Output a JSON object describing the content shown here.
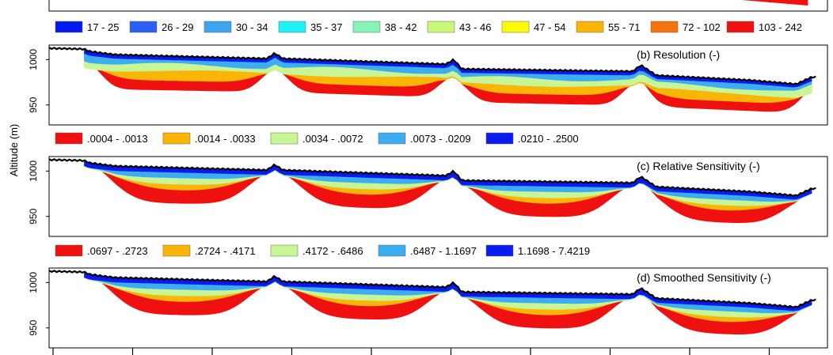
{
  "figure": {
    "ylabel": "Altitude (m)"
  },
  "chart_data": [
    {
      "type": "heatmap",
      "title": "",
      "legend": [
        {
          "label": "17 - 25",
          "color": "#0019f0"
        },
        {
          "label": "26 - 29",
          "color": "#2d5ff5"
        },
        {
          "label": "30 - 34",
          "color": "#3ca5ee"
        },
        {
          "label": "35 - 37",
          "color": "#1ef2f7"
        },
        {
          "label": "38 - 42",
          "color": "#86f4b8"
        },
        {
          "label": "43 - 46",
          "color": "#c8f878"
        },
        {
          "label": "47 - 54",
          "color": "#fbfa09"
        },
        {
          "label": "55 - 71",
          "color": "#fab507"
        },
        {
          "label": "72 - 102",
          "color": "#f4730e"
        },
        {
          "label": "103 - 242",
          "color": "#ef1010"
        }
      ]
    },
    {
      "type": "heatmap",
      "title": "(b) Resolution (-)",
      "ylabel": "Altitude (m)",
      "yticks": [
        950,
        1000
      ],
      "ylim": [
        928,
        1016
      ],
      "legend": [
        {
          "label": ".0004 - .0013",
          "color": "#ef1010"
        },
        {
          "label": ".0014 - .0033",
          "color": "#fab507"
        },
        {
          "label": ".0034 - .0072",
          "color": "#c8f595"
        },
        {
          "label": ".0073 - .0209",
          "color": "#3caeef"
        },
        {
          "label": ".0210 - .2500",
          "color": "#0a1bf0"
        }
      ]
    },
    {
      "type": "heatmap",
      "title": "(c) Relative Sensitivity (-)",
      "ylabel": "Altitude (m)",
      "yticks": [
        950,
        1000
      ],
      "ylim": [
        928,
        1016
      ],
      "legend": [
        {
          "label": ".0697 - .2723",
          "color": "#ef1010"
        },
        {
          "label": ".2724 - .4171",
          "color": "#fab507"
        },
        {
          "label": ".4172 - .6486",
          "color": "#c8f595"
        },
        {
          "label": ".6487 - 1.1697",
          "color": "#3caeef"
        },
        {
          "label": "1.1698 - 7.4219",
          "color": "#0a1bf0"
        }
      ]
    },
    {
      "type": "heatmap",
      "title": "(d) Smoothed Sensitivity (-)",
      "ylabel": "Altitude (m)",
      "yticks": [
        950,
        1000
      ],
      "ylim": [
        928,
        1016
      ]
    }
  ],
  "colors": {
    "blue": "#0a1bf0",
    "lightblue": "#3caeef",
    "cyan": "#1ef2f7",
    "mint": "#86f4b8",
    "lime": "#c8f595",
    "yellow": "#fbfa09",
    "orange": "#fab507",
    "darkorange": "#f4730e",
    "red": "#ef1010"
  }
}
